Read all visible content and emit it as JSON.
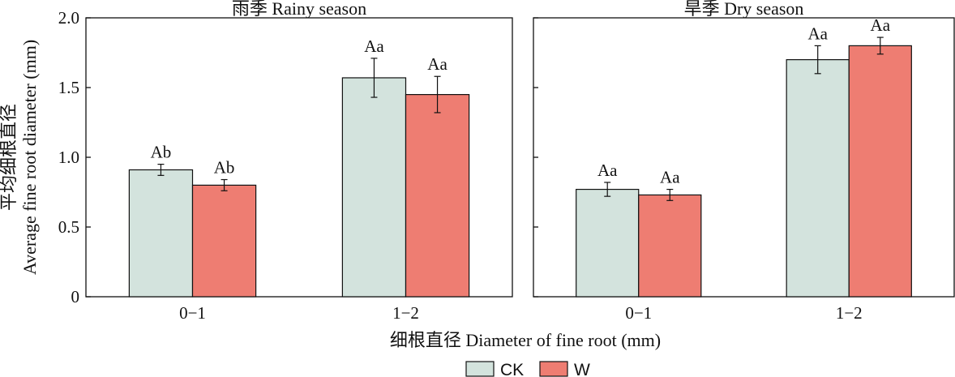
{
  "figure": {
    "ylabel_cn": "平均细根直径",
    "ylabel_en": "Average fine root diameter (mm)",
    "xlabel": "细根直径 Diameter of fine root (mm)"
  },
  "chart_data": [
    {
      "type": "bar",
      "title": "雨季 Rainy season",
      "categories": [
        "0−1",
        "1−2"
      ],
      "series": [
        {
          "name": "CK",
          "values": [
            0.91,
            1.57
          ],
          "errors": [
            0.04,
            0.14
          ],
          "labels": [
            "Ab",
            "Aa"
          ]
        },
        {
          "name": "W",
          "values": [
            0.8,
            1.45
          ],
          "errors": [
            0.04,
            0.13
          ],
          "labels": [
            "Ab",
            "Aa"
          ]
        }
      ],
      "ylim": [
        0,
        2.0
      ],
      "yticks": [
        0,
        0.5,
        1.0,
        1.5,
        2.0
      ],
      "ytick_labels": [
        "0",
        "0.5",
        "1.0",
        "1.5",
        "2.0"
      ],
      "grid": false
    },
    {
      "type": "bar",
      "title": "旱季 Dry season",
      "categories": [
        "0−1",
        "1−2"
      ],
      "series": [
        {
          "name": "CK",
          "values": [
            0.77,
            1.7
          ],
          "errors": [
            0.05,
            0.1
          ],
          "labels": [
            "Aa",
            "Aa"
          ]
        },
        {
          "name": "W",
          "values": [
            0.73,
            1.8
          ],
          "errors": [
            0.04,
            0.06
          ],
          "labels": [
            "Aa",
            "Aa"
          ]
        }
      ],
      "ylim": [
        0,
        2.0
      ],
      "yticks": [
        0,
        0.5,
        1.0,
        1.5,
        2.0
      ],
      "grid": false
    }
  ],
  "legend": {
    "placement": "bottom-center",
    "items": [
      {
        "name": "CK",
        "color": "#d3e3dd"
      },
      {
        "name": "W",
        "color": "#ee7d72"
      }
    ]
  },
  "colors": {
    "CK": "#d3e3dd",
    "W": "#ee7d72",
    "axis": "#111111"
  }
}
